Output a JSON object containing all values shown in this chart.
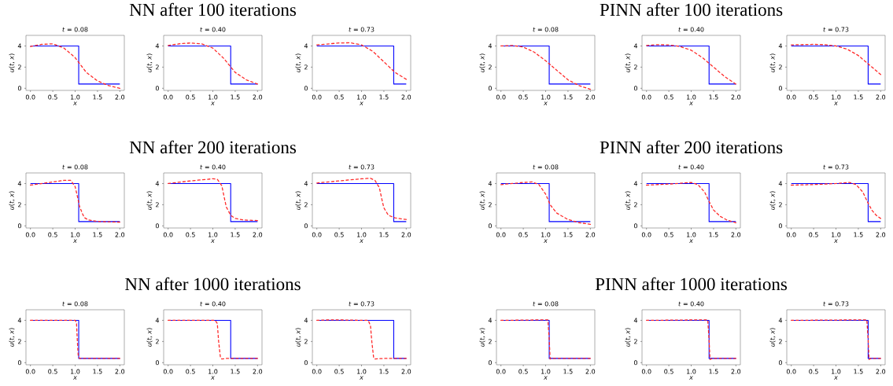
{
  "chart_data": [
    {
      "type": "line",
      "title": "*t* = 0.08",
      "xlabel": "x",
      "ylabel": "*u*(*t*, *x*)",
      "xlim": [
        -0.1,
        2.1
      ],
      "ylim": [
        -0.2,
        5
      ],
      "xticks": [
        {
          "value": 0,
          "label": "0.0"
        },
        {
          "value": 0.5,
          "label": "0.5"
        },
        {
          "value": 1,
          "label": "1.0"
        },
        {
          "value": 1.5,
          "label": "1.5"
        },
        {
          "value": 2,
          "label": "2.0"
        }
      ],
      "yticks": [
        0,
        2,
        4
      ],
      "series": [
        {
          "color": "#0000ff",
          "line_style": "solid",
          "x": [
            0,
            1.08,
            1.08,
            2
          ],
          "values": [
            4,
            4,
            0.4,
            0.4
          ]
        },
        {
          "color": "#ff2a2a",
          "line_style": "dashed",
          "x": [
            0,
            0.25,
            0.5,
            0.75,
            1.0,
            1.25,
            1.5,
            1.75,
            2.0
          ],
          "values": [
            3.95,
            4.15,
            4.2,
            3.8,
            2.9,
            1.5,
            0.7,
            0.25,
            0.0
          ]
        }
      ]
    },
    {
      "type": "line",
      "title": "*t* = 0.40",
      "xlabel": "x",
      "ylabel": "*u*(*t*, *x*)",
      "annotations": [
        "NN after 100 iterations"
      ],
      "xlim": [
        -0.1,
        2.1
      ],
      "ylim": [
        -0.2,
        5
      ],
      "xticks": [
        {
          "value": 0,
          "label": "0.0"
        },
        {
          "value": 0.5,
          "label": "0.5"
        },
        {
          "value": 1,
          "label": "1.0"
        },
        {
          "value": 1.5,
          "label": "1.5"
        },
        {
          "value": 2,
          "label": "2.0"
        }
      ],
      "yticks": [
        0,
        2,
        4
      ],
      "series": [
        {
          "color": "#0000ff",
          "line_style": "solid",
          "x": [
            0,
            1.4,
            1.4,
            2
          ],
          "values": [
            4,
            4,
            0.4,
            0.4
          ]
        },
        {
          "color": "#ff2a2a",
          "line_style": "dashed",
          "x": [
            0,
            0.25,
            0.5,
            0.75,
            1.0,
            1.25,
            1.5,
            1.75,
            2.0
          ],
          "values": [
            4.05,
            4.2,
            4.28,
            4.2,
            3.8,
            2.8,
            1.5,
            0.8,
            0.4
          ]
        }
      ]
    },
    {
      "type": "line",
      "title": "*t* = 0.73",
      "xlabel": "x",
      "ylabel": "*u*(*t*, *x*)",
      "xlim": [
        -0.1,
        2.1
      ],
      "ylim": [
        -0.2,
        5
      ],
      "xticks": [
        {
          "value": 0,
          "label": "0.0"
        },
        {
          "value": 0.5,
          "label": "0.5"
        },
        {
          "value": 1,
          "label": "1.0"
        },
        {
          "value": 1.5,
          "label": "1.5"
        },
        {
          "value": 2,
          "label": "2.0"
        }
      ],
      "yticks": [
        0,
        2,
        4
      ],
      "series": [
        {
          "color": "#0000ff",
          "line_style": "solid",
          "x": [
            0,
            1.72,
            1.72,
            2
          ],
          "values": [
            4,
            4,
            0.4,
            0.4
          ]
        },
        {
          "color": "#ff2a2a",
          "line_style": "dashed",
          "x": [
            0,
            0.5,
            0.75,
            1.0,
            1.25,
            1.5,
            1.75,
            2.0
          ],
          "values": [
            4.1,
            4.28,
            4.3,
            4.1,
            3.5,
            2.5,
            1.5,
            0.85
          ]
        }
      ]
    },
    {
      "type": "line",
      "title": "*t* = 0.08",
      "xlabel": "x",
      "ylabel": "*u*(*t*, *x*)",
      "xlim": [
        -0.1,
        2.1
      ],
      "ylim": [
        -0.2,
        5
      ],
      "xticks": [
        {
          "value": 0,
          "label": "0.0"
        },
        {
          "value": 0.5,
          "label": "0.5"
        },
        {
          "value": 1,
          "label": "1.0"
        },
        {
          "value": 1.5,
          "label": "1.5"
        },
        {
          "value": 2,
          "label": "2.0"
        }
      ],
      "yticks": [
        0,
        2,
        4
      ],
      "series": [
        {
          "color": "#0000ff",
          "line_style": "solid",
          "x": [
            0,
            1.08,
            1.08,
            2
          ],
          "values": [
            4,
            4,
            0.4,
            0.4
          ]
        },
        {
          "color": "#ff2a2a",
          "line_style": "dashed",
          "x": [
            0,
            0.25,
            0.5,
            0.75,
            1.0,
            1.25,
            1.5,
            1.75,
            2.0
          ],
          "values": [
            4.0,
            4.05,
            3.9,
            3.4,
            2.6,
            1.7,
            0.8,
            0.25,
            -0.1
          ]
        }
      ]
    },
    {
      "type": "line",
      "title": "*t* = 0.40",
      "xlabel": "x",
      "ylabel": "*u*(*t*, *x*)",
      "annotations": [
        "PINN after 100 iterations"
      ],
      "xlim": [
        -0.1,
        2.1
      ],
      "ylim": [
        -0.2,
        5
      ],
      "xticks": [
        {
          "value": 0,
          "label": "0.0"
        },
        {
          "value": 0.5,
          "label": "0.5"
        },
        {
          "value": 1,
          "label": "1.0"
        },
        {
          "value": 1.5,
          "label": "1.5"
        },
        {
          "value": 2,
          "label": "2.0"
        }
      ],
      "yticks": [
        0,
        2,
        4
      ],
      "series": [
        {
          "color": "#0000ff",
          "line_style": "solid",
          "x": [
            0,
            1.4,
            1.4,
            2
          ],
          "values": [
            4,
            4,
            0.4,
            0.4
          ]
        },
        {
          "color": "#ff2a2a",
          "line_style": "dashed",
          "x": [
            0,
            0.25,
            0.5,
            0.75,
            1.0,
            1.25,
            1.5,
            1.75,
            2.0
          ],
          "values": [
            4.05,
            4.12,
            4.1,
            3.95,
            3.6,
            2.9,
            2.0,
            1.1,
            0.4
          ]
        }
      ]
    },
    {
      "type": "line",
      "title": "*t* = 0.73",
      "xlabel": "x",
      "ylabel": "*u*(*t*, *x*)",
      "xlim": [
        -0.1,
        2.1
      ],
      "ylim": [
        -0.2,
        5
      ],
      "xticks": [
        {
          "value": 0,
          "label": "0.0"
        },
        {
          "value": 0.5,
          "label": "0.5"
        },
        {
          "value": 1,
          "label": "1.0"
        },
        {
          "value": 1.5,
          "label": "1.5"
        },
        {
          "value": 2,
          "label": "2.0"
        }
      ],
      "yticks": [
        0,
        2,
        4
      ],
      "series": [
        {
          "color": "#0000ff",
          "line_style": "solid",
          "x": [
            0,
            1.72,
            1.72,
            2
          ],
          "values": [
            4,
            4,
            0.4,
            0.4
          ]
        },
        {
          "color": "#ff2a2a",
          "line_style": "dashed",
          "x": [
            0,
            0.5,
            0.75,
            1.0,
            1.25,
            1.5,
            1.75,
            2.0
          ],
          "values": [
            4.1,
            4.15,
            4.12,
            4.0,
            3.7,
            3.1,
            2.2,
            1.3
          ]
        }
      ]
    },
    {
      "type": "line",
      "title": "*t* = 0.08",
      "xlabel": "x",
      "ylabel": "*u*(*t*, *x*)",
      "xlim": [
        -0.1,
        2.1
      ],
      "ylim": [
        -0.2,
        5
      ],
      "xticks": [
        {
          "value": 0,
          "label": "0.0"
        },
        {
          "value": 0.5,
          "label": "0.5"
        },
        {
          "value": 1,
          "label": "1.0"
        },
        {
          "value": 1.5,
          "label": "1.5"
        },
        {
          "value": 2,
          "label": "2.0"
        }
      ],
      "yticks": [
        0,
        2,
        4
      ],
      "series": [
        {
          "color": "#0000ff",
          "line_style": "solid",
          "x": [
            0,
            1.08,
            1.08,
            2
          ],
          "values": [
            4,
            4,
            0.4,
            0.4
          ]
        },
        {
          "color": "#ff2a2a",
          "line_style": "dashed",
          "x": [
            0,
            0.25,
            0.5,
            0.75,
            0.9,
            1.0,
            1.05,
            1.1,
            1.2,
            1.3,
            1.5,
            2.0
          ],
          "values": [
            3.85,
            4.0,
            4.15,
            4.3,
            4.3,
            3.7,
            2.8,
            1.8,
            0.8,
            0.55,
            0.42,
            0.35
          ]
        }
      ]
    },
    {
      "type": "line",
      "title": "*t* = 0.40",
      "xlabel": "x",
      "ylabel": "*u*(*t*, *x*)",
      "annotations": [
        "NN after 200 iterations"
      ],
      "xlim": [
        -0.1,
        2.1
      ],
      "ylim": [
        -0.2,
        5
      ],
      "xticks": [
        {
          "value": 0,
          "label": "0.0"
        },
        {
          "value": 0.5,
          "label": "0.5"
        },
        {
          "value": 1,
          "label": "1.0"
        },
        {
          "value": 1.5,
          "label": "1.5"
        },
        {
          "value": 2,
          "label": "2.0"
        }
      ],
      "yticks": [
        0,
        2,
        4
      ],
      "series": [
        {
          "color": "#0000ff",
          "line_style": "solid",
          "x": [
            0,
            1.4,
            1.4,
            2
          ],
          "values": [
            4,
            4,
            0.4,
            0.4
          ]
        },
        {
          "color": "#ff2a2a",
          "line_style": "dashed",
          "x": [
            0,
            0.5,
            1.0,
            1.1,
            1.2,
            1.25,
            1.3,
            1.4,
            1.5,
            1.7,
            2.0
          ],
          "values": [
            4.0,
            4.25,
            4.45,
            4.4,
            3.8,
            2.8,
            1.8,
            1.0,
            0.7,
            0.55,
            0.5
          ]
        }
      ]
    },
    {
      "type": "line",
      "title": "*t* = 0.73",
      "xlabel": "x",
      "ylabel": "*u*(*t*, *x*)",
      "xlim": [
        -0.1,
        2.1
      ],
      "ylim": [
        -0.2,
        5
      ],
      "xticks": [
        {
          "value": 0,
          "label": "0.0"
        },
        {
          "value": 0.5,
          "label": "0.5"
        },
        {
          "value": 1,
          "label": "1.0"
        },
        {
          "value": 1.5,
          "label": "1.5"
        },
        {
          "value": 2,
          "label": "2.0"
        }
      ],
      "yticks": [
        0,
        2,
        4
      ],
      "series": [
        {
          "color": "#0000ff",
          "line_style": "solid",
          "x": [
            0,
            1.72,
            1.72,
            2
          ],
          "values": [
            4,
            4,
            0.4,
            0.4
          ]
        },
        {
          "color": "#ff2a2a",
          "line_style": "dashed",
          "x": [
            0,
            0.5,
            1.0,
            1.2,
            1.3,
            1.4,
            1.45,
            1.5,
            1.6,
            1.75,
            2.0
          ],
          "values": [
            4.05,
            4.25,
            4.45,
            4.5,
            4.3,
            3.6,
            2.6,
            1.7,
            1.0,
            0.75,
            0.6
          ]
        }
      ]
    },
    {
      "type": "line",
      "title": "*t* = 0.08",
      "xlabel": "x",
      "ylabel": "*u*(*t*, *x*)",
      "xlim": [
        -0.1,
        2.1
      ],
      "ylim": [
        -0.2,
        5
      ],
      "xticks": [
        {
          "value": 0,
          "label": "0.0"
        },
        {
          "value": 0.5,
          "label": "0.5"
        },
        {
          "value": 1,
          "label": "1.0"
        },
        {
          "value": 1.5,
          "label": "1.5"
        },
        {
          "value": 2,
          "label": "2.0"
        }
      ],
      "yticks": [
        0,
        2,
        4
      ],
      "series": [
        {
          "color": "#0000ff",
          "line_style": "solid",
          "x": [
            0,
            1.08,
            1.08,
            2
          ],
          "values": [
            4,
            4,
            0.4,
            0.4
          ]
        },
        {
          "color": "#ff2a2a",
          "line_style": "dashed",
          "x": [
            0,
            0.25,
            0.5,
            0.7,
            0.85,
            1.0,
            1.1,
            1.25,
            1.5,
            1.75,
            2.0
          ],
          "values": [
            3.9,
            4.0,
            4.1,
            4.15,
            3.9,
            3.0,
            2.0,
            1.2,
            0.6,
            0.3,
            0.15
          ]
        }
      ]
    },
    {
      "type": "line",
      "title": "*t* = 0.40",
      "xlabel": "x",
      "ylabel": "*u*(*t*, *x*)",
      "annotations": [
        "PINN after 200 iterations"
      ],
      "xlim": [
        -0.1,
        2.1
      ],
      "ylim": [
        -0.2,
        5
      ],
      "xticks": [
        {
          "value": 0,
          "label": "0.0"
        },
        {
          "value": 0.5,
          "label": "0.5"
        },
        {
          "value": 1,
          "label": "1.0"
        },
        {
          "value": 1.5,
          "label": "1.5"
        },
        {
          "value": 2,
          "label": "2.0"
        }
      ],
      "yticks": [
        0,
        2,
        4
      ],
      "series": [
        {
          "color": "#0000ff",
          "line_style": "solid",
          "x": [
            0,
            1.4,
            1.4,
            2
          ],
          "values": [
            4,
            4,
            0.4,
            0.4
          ]
        },
        {
          "color": "#ff2a2a",
          "line_style": "dashed",
          "x": [
            0,
            0.5,
            1.0,
            1.15,
            1.3,
            1.4,
            1.5,
            1.65,
            1.8,
            2.0
          ],
          "values": [
            3.85,
            3.95,
            4.1,
            3.9,
            3.2,
            2.3,
            1.5,
            0.9,
            0.55,
            0.3
          ]
        }
      ]
    },
    {
      "type": "line",
      "title": "*t* = 0.73",
      "xlabel": "x",
      "ylabel": "*u*(*t*, *x*)",
      "xlim": [
        -0.1,
        2.1
      ],
      "ylim": [
        -0.2,
        5
      ],
      "xticks": [
        {
          "value": 0,
          "label": "0.0"
        },
        {
          "value": 0.5,
          "label": "0.5"
        },
        {
          "value": 1,
          "label": "1.0"
        },
        {
          "value": 1.5,
          "label": "1.5"
        },
        {
          "value": 2,
          "label": "2.0"
        }
      ],
      "yticks": [
        0,
        2,
        4
      ],
      "series": [
        {
          "color": "#0000ff",
          "line_style": "solid",
          "x": [
            0,
            1.72,
            1.72,
            2
          ],
          "values": [
            4,
            4,
            0.4,
            0.4
          ]
        },
        {
          "color": "#ff2a2a",
          "line_style": "dashed",
          "x": [
            0,
            0.5,
            1.0,
            1.3,
            1.45,
            1.6,
            1.7,
            1.8,
            1.9,
            2.0
          ],
          "values": [
            3.85,
            3.9,
            4.0,
            4.1,
            3.9,
            3.2,
            2.3,
            1.5,
            1.0,
            0.7
          ]
        }
      ]
    },
    {
      "type": "line",
      "title": "*t* = 0.08",
      "xlabel": "x",
      "ylabel": "*u*(*t*, *x*)",
      "xlim": [
        -0.1,
        2.1
      ],
      "ylim": [
        -0.2,
        5
      ],
      "xticks": [
        {
          "value": 0,
          "label": "0.0"
        },
        {
          "value": 0.5,
          "label": "0.5"
        },
        {
          "value": 1,
          "label": "1.0"
        },
        {
          "value": 1.5,
          "label": "1.5"
        },
        {
          "value": 2,
          "label": "2.0"
        }
      ],
      "yticks": [
        0,
        2,
        4
      ],
      "series": [
        {
          "color": "#0000ff",
          "line_style": "solid",
          "x": [
            0,
            1.08,
            1.08,
            2
          ],
          "values": [
            4,
            4,
            0.4,
            0.4
          ]
        },
        {
          "color": "#ff2a2a",
          "line_style": "dashed",
          "x": [
            0,
            1.0,
            1.03,
            1.05,
            1.07,
            1.1,
            2.0
          ],
          "values": [
            4,
            4,
            3.8,
            2.0,
            0.6,
            0.4,
            0.4
          ]
        }
      ]
    },
    {
      "type": "line",
      "title": "*t* = 0.40",
      "xlabel": "x",
      "ylabel": "*u*(*t*, *x*)",
      "annotations": [
        "NN after 1000 iterations"
      ],
      "xlim": [
        -0.1,
        2.1
      ],
      "ylim": [
        -0.2,
        5
      ],
      "xticks": [
        {
          "value": 0,
          "label": "0.0"
        },
        {
          "value": 0.5,
          "label": "0.5"
        },
        {
          "value": 1,
          "label": "1.0"
        },
        {
          "value": 1.5,
          "label": "1.5"
        },
        {
          "value": 2,
          "label": "2.0"
        }
      ],
      "yticks": [
        0,
        2,
        4
      ],
      "series": [
        {
          "color": "#0000ff",
          "line_style": "solid",
          "x": [
            0,
            1.4,
            1.4,
            2
          ],
          "values": [
            4,
            4,
            0.4,
            0.4
          ]
        },
        {
          "color": "#ff2a2a",
          "line_style": "dashed",
          "x": [
            0,
            1.05,
            1.1,
            1.13,
            1.17,
            1.2,
            1.3,
            2.0
          ],
          "values": [
            4,
            4,
            3.7,
            2,
            0.5,
            0.35,
            0.4,
            0.4
          ]
        }
      ]
    },
    {
      "type": "line",
      "title": "*t* = 0.73",
      "xlabel": "x",
      "ylabel": "*u*(*t*, *x*)",
      "xlim": [
        -0.1,
        2.1
      ],
      "ylim": [
        -0.2,
        5
      ],
      "xticks": [
        {
          "value": 0,
          "label": "0.0"
        },
        {
          "value": 0.5,
          "label": "0.5"
        },
        {
          "value": 1,
          "label": "1.0"
        },
        {
          "value": 1.5,
          "label": "1.5"
        },
        {
          "value": 2,
          "label": "2.0"
        }
      ],
      "yticks": [
        0,
        2,
        4
      ],
      "series": [
        {
          "color": "#0000ff",
          "line_style": "solid",
          "x": [
            0,
            1.72,
            1.72,
            2
          ],
          "values": [
            4,
            4,
            0.4,
            0.4
          ]
        },
        {
          "color": "#ff2a2a",
          "line_style": "dashed",
          "x": [
            0,
            0.3,
            1.15,
            1.2,
            1.23,
            1.27,
            1.3,
            1.5,
            2.0
          ],
          "values": [
            4,
            4.05,
            4,
            3.5,
            2,
            0.5,
            0.35,
            0.4,
            0.4
          ]
        }
      ]
    },
    {
      "type": "line",
      "title": "*t* = 0.08",
      "xlabel": "x",
      "ylabel": "*u*(*t*, *x*)",
      "xlim": [
        -0.1,
        2.1
      ],
      "ylim": [
        -0.2,
        5
      ],
      "xticks": [
        {
          "value": 0,
          "label": "0.0"
        },
        {
          "value": 0.5,
          "label": "0.5"
        },
        {
          "value": 1,
          "label": "1.0"
        },
        {
          "value": 1.5,
          "label": "1.5"
        },
        {
          "value": 2,
          "label": "2.0"
        }
      ],
      "yticks": [
        0,
        2,
        4
      ],
      "series": [
        {
          "color": "#0000ff",
          "line_style": "solid",
          "x": [
            0,
            1.08,
            1.08,
            2
          ],
          "values": [
            4,
            4,
            0.4,
            0.4
          ]
        },
        {
          "color": "#ff2a2a",
          "line_style": "dashed",
          "x": [
            0,
            1.05,
            1.08,
            1.1,
            1.15,
            2.0
          ],
          "values": [
            4,
            4.05,
            2.2,
            0.35,
            0.4,
            0.4
          ]
        }
      ]
    },
    {
      "type": "line",
      "title": "*t* = 0.40",
      "xlabel": "x",
      "ylabel": "*u*(*t*, *x*)",
      "annotations": [
        "PINN after 1000 iterations"
      ],
      "xlim": [
        -0.1,
        2.1
      ],
      "ylim": [
        -0.2,
        5
      ],
      "xticks": [
        {
          "value": 0,
          "label": "0.0"
        },
        {
          "value": 0.5,
          "label": "0.5"
        },
        {
          "value": 1,
          "label": "1.0"
        },
        {
          "value": 1.5,
          "label": "1.5"
        },
        {
          "value": 2,
          "label": "2.0"
        }
      ],
      "yticks": [
        0,
        2,
        4
      ],
      "series": [
        {
          "color": "#0000ff",
          "line_style": "solid",
          "x": [
            0,
            1.4,
            1.4,
            2
          ],
          "values": [
            4,
            4,
            0.4,
            0.4
          ]
        },
        {
          "color": "#ff2a2a",
          "line_style": "dashed",
          "x": [
            0,
            1.37,
            1.4,
            1.42,
            1.47,
            2.0
          ],
          "values": [
            4,
            4.05,
            2.2,
            0.3,
            0.4,
            0.4
          ]
        }
      ]
    },
    {
      "type": "line",
      "title": "*t* = 0.73",
      "xlabel": "x",
      "ylabel": "*u*(*t*, *x*)",
      "xlim": [
        -0.1,
        2.1
      ],
      "ylim": [
        -0.2,
        5
      ],
      "xticks": [
        {
          "value": 0,
          "label": "0.0"
        },
        {
          "value": 0.5,
          "label": "0.5"
        },
        {
          "value": 1,
          "label": "1.0"
        },
        {
          "value": 1.5,
          "label": "1.5"
        },
        {
          "value": 2,
          "label": "2.0"
        }
      ],
      "yticks": [
        0,
        2,
        4
      ],
      "series": [
        {
          "color": "#0000ff",
          "line_style": "solid",
          "x": [
            0,
            1.72,
            1.72,
            2
          ],
          "values": [
            4,
            4,
            0.4,
            0.4
          ]
        },
        {
          "color": "#ff2a2a",
          "line_style": "dashed",
          "x": [
            0,
            1.69,
            1.72,
            1.74,
            1.78,
            2.0
          ],
          "values": [
            4,
            4.05,
            2.2,
            0.3,
            0.4,
            0.4
          ]
        }
      ]
    }
  ]
}
